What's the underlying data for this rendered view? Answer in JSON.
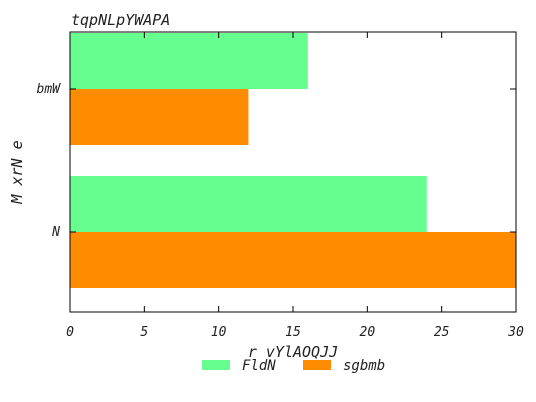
{
  "chart_data": {
    "type": "bar",
    "orientation": "horizontal",
    "title": "tqpNLpYWAPA",
    "xlabel": "r vYlAOQJJ",
    "ylabel": "M xrN  e",
    "categories": [
      "bmW",
      "N"
    ],
    "series": [
      {
        "name": "FldN",
        "color": "#66ff8f",
        "values": [
          16,
          24
        ]
      },
      {
        "name": "sgbmb",
        "color": "#ff8c00",
        "values": [
          12,
          30
        ]
      }
    ],
    "xlim": [
      0,
      30
    ],
    "xticks": [
      0,
      5,
      10,
      15,
      20,
      25,
      30
    ],
    "grid": false,
    "legend_position": "bottom-center"
  }
}
